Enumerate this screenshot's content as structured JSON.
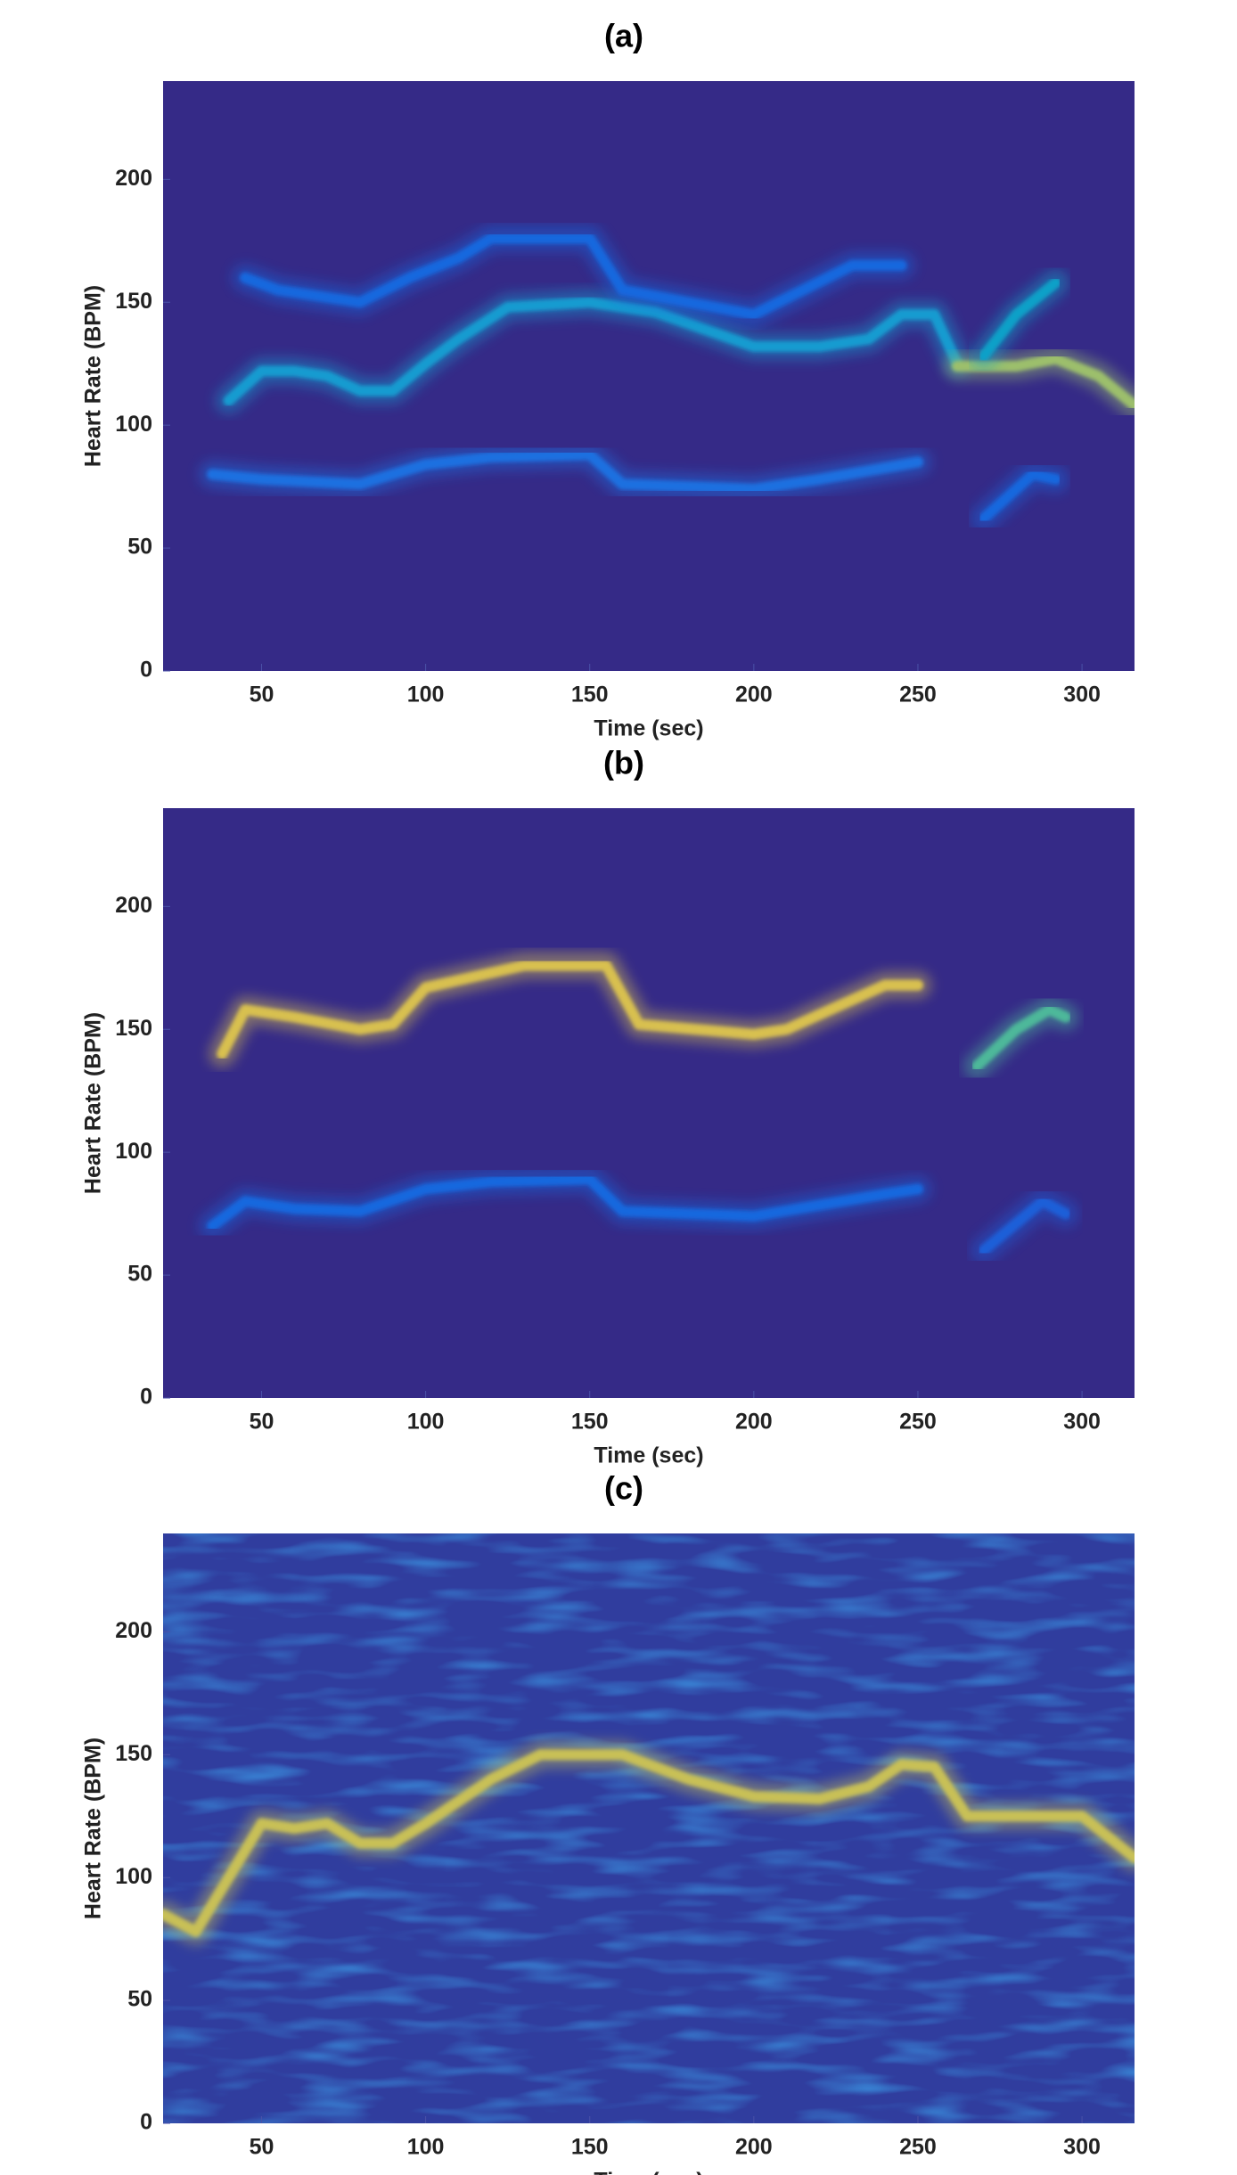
{
  "chart_data": [
    {
      "type": "spectrogram",
      "title": "(a)",
      "xlabel": "Time (sec)",
      "ylabel": "Heart Rate (BPM)",
      "xlim": [
        20,
        316
      ],
      "ylim": [
        0,
        240
      ],
      "xticks": [
        50,
        100,
        150,
        200,
        250,
        300
      ],
      "yticks": [
        0,
        50,
        100,
        150,
        200
      ],
      "background": "#352a87",
      "noise": false,
      "tracks": [
        {
          "color": "#1a6fe0",
          "x": [
            35,
            50,
            80,
            90,
            100,
            120,
            150,
            160,
            200,
            220,
            250
          ],
          "y": [
            80,
            78,
            76,
            80,
            84,
            87,
            88,
            76,
            74,
            78,
            85
          ]
        },
        {
          "color": "#129bd0",
          "x": [
            40,
            50,
            60,
            70,
            80,
            90,
            100,
            110,
            125,
            150,
            170,
            200,
            220,
            235,
            245,
            255,
            262
          ],
          "y": [
            110,
            122,
            122,
            120,
            114,
            114,
            125,
            135,
            148,
            150,
            146,
            132,
            132,
            135,
            145,
            145,
            125
          ]
        },
        {
          "color": "#9cbf6c",
          "x": [
            262,
            280,
            292,
            305,
            316
          ],
          "y": [
            124,
            124,
            127,
            120,
            108
          ]
        },
        {
          "color": "#1568de",
          "x": [
            45,
            55,
            80,
            95,
            110,
            120,
            150,
            160,
            200,
            230,
            245
          ],
          "y": [
            160,
            155,
            150,
            160,
            168,
            176,
            176,
            155,
            145,
            165,
            165
          ]
        },
        {
          "color": "#10a0c8",
          "x": [
            270,
            280,
            292
          ],
          "y": [
            128,
            145,
            158
          ]
        },
        {
          "color": "#1568de",
          "x": [
            270,
            285,
            292
          ],
          "y": [
            62,
            80,
            78
          ]
        }
      ]
    },
    {
      "type": "spectrogram",
      "title": "(b)",
      "xlabel": "Time (sec)",
      "ylabel": "Heart Rate (BPM)",
      "xlim": [
        20,
        316
      ],
      "ylim": [
        0,
        240
      ],
      "xticks": [
        50,
        100,
        150,
        200,
        250,
        300
      ],
      "yticks": [
        0,
        50,
        100,
        150,
        200
      ],
      "background": "#352a87",
      "noise": false,
      "tracks": [
        {
          "color": "#d8c050",
          "x": [
            38,
            45,
            60,
            80,
            90,
            100,
            120,
            130,
            155,
            165,
            200,
            210,
            220,
            240,
            250
          ],
          "y": [
            140,
            158,
            155,
            150,
            152,
            167,
            173,
            176,
            176,
            152,
            148,
            150,
            156,
            168,
            168
          ]
        },
        {
          "color": "#1568de",
          "x": [
            35,
            45,
            60,
            80,
            100,
            120,
            150,
            160,
            200,
            240,
            250
          ],
          "y": [
            70,
            80,
            77,
            76,
            85,
            88,
            89,
            76,
            74,
            83,
            85
          ]
        },
        {
          "color": "#4db89a",
          "x": [
            268,
            280,
            290,
            295
          ],
          "y": [
            135,
            150,
            158,
            155
          ]
        },
        {
          "color": "#1a5fd8",
          "x": [
            270,
            288,
            295
          ],
          "y": [
            60,
            80,
            75
          ]
        }
      ]
    },
    {
      "type": "spectrogram",
      "title": "(c)",
      "xlabel": "Time (sec)",
      "ylabel": "Heart Rate (BPM)",
      "xlim": [
        20,
        316
      ],
      "ylim": [
        0,
        240
      ],
      "xticks": [
        50,
        100,
        150,
        200,
        250,
        300
      ],
      "yticks": [
        0,
        50,
        100,
        150,
        200
      ],
      "background": "#303d9e",
      "noise": true,
      "tracks": [
        {
          "color": "#c8c056",
          "x": [
            20,
            30,
            40,
            50,
            60,
            70,
            80,
            90,
            100,
            120,
            135,
            160,
            180,
            200,
            220,
            235,
            245,
            255,
            265,
            290,
            300,
            316
          ],
          "y": [
            85,
            78,
            100,
            122,
            120,
            122,
            114,
            114,
            122,
            140,
            150,
            150,
            140,
            133,
            132,
            137,
            146,
            145,
            125,
            125,
            125,
            108
          ]
        }
      ]
    }
  ]
}
